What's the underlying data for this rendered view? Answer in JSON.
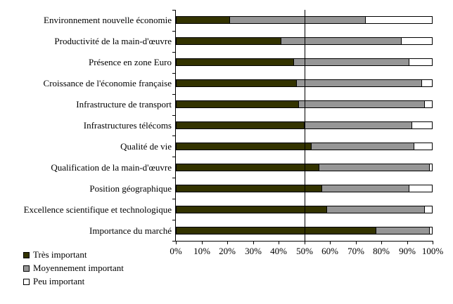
{
  "chart_data": {
    "type": "bar",
    "orientation": "horizontal",
    "stacked": true,
    "title": "",
    "xlabel": "",
    "ylabel": "",
    "xlim": [
      0,
      100
    ],
    "x_ticks": [
      "0%",
      "10%",
      "20%",
      "30%",
      "40%",
      "50%",
      "60%",
      "70%",
      "80%",
      "90%",
      "100%"
    ],
    "reference_line_x": 50,
    "grid": "vertical line at 50% only",
    "legend_position": "bottom-left",
    "categories": [
      "Environnement nouvelle économie",
      "Productivité de la main-d'œuvre",
      "Présence en zone Euro",
      "Croissance de l'économie française",
      "Infrastructure de transport",
      "Infrastructures télécoms",
      "Qualité de vie",
      "Qualification de la main-d'œuvre",
      "Position géographique",
      "Excellence scientifique et technologique",
      "Importance du marché"
    ],
    "series": [
      {
        "name": "Très important",
        "color": "#333300",
        "values": [
          21,
          41,
          46,
          47,
          48,
          50,
          53,
          56,
          57,
          59,
          78
        ]
      },
      {
        "name": "Moyennement important",
        "color": "#969696",
        "values": [
          53,
          47,
          45,
          49,
          49,
          42,
          40,
          43,
          34,
          38,
          21
        ]
      },
      {
        "name": "Peu important",
        "color": "#FFFFFF",
        "values": [
          26,
          12,
          9,
          4,
          3,
          8,
          7,
          1,
          9,
          3,
          1
        ]
      }
    ]
  }
}
